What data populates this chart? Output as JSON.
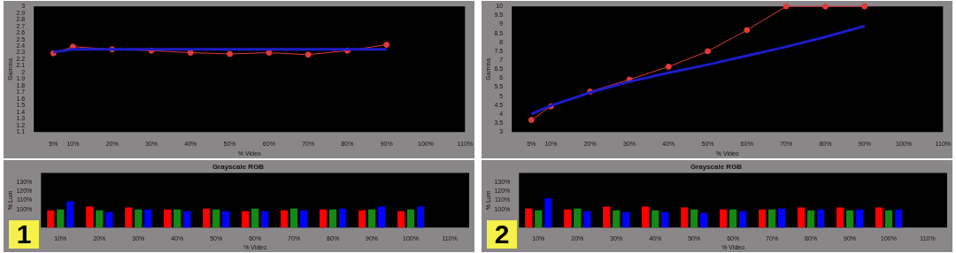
{
  "chart_data": [
    {
      "type": "line",
      "xlabel": "% Video",
      "ylabel": "Gamma",
      "marker": "circle",
      "xlim": [
        0,
        110
      ],
      "xticks": [
        {
          "value": 5,
          "label": "5%"
        },
        {
          "value": 10,
          "label": "10%"
        },
        {
          "value": 20,
          "label": "20%"
        },
        {
          "value": 30,
          "label": "30%"
        },
        {
          "value": 40,
          "label": "40%"
        },
        {
          "value": 50,
          "label": "50%"
        },
        {
          "value": 60,
          "label": "60%"
        },
        {
          "value": 70,
          "label": "70%"
        },
        {
          "value": 80,
          "label": "80%"
        },
        {
          "value": 90,
          "label": "90%"
        },
        {
          "value": 100,
          "label": "100%"
        },
        {
          "value": 110,
          "label": "110%"
        }
      ],
      "ylim": [
        1.1,
        3
      ],
      "yticks": [
        1.1,
        1.2,
        1.3,
        1.4,
        1.5,
        1.6,
        1.7,
        1.8,
        1.9,
        2,
        2.1,
        2.2,
        2.3,
        2.4,
        2.5,
        2.6,
        2.7,
        2.8,
        2.9,
        3
      ],
      "series": [
        {
          "color": "#1c1cc8",
          "marker": "none",
          "x": [
            5,
            10,
            20,
            30,
            40,
            50,
            60,
            70,
            80,
            90
          ],
          "values": [
            2.31,
            2.35,
            2.35,
            2.35,
            2.35,
            2.35,
            2.35,
            2.35,
            2.35,
            2.35
          ]
        },
        {
          "color": "#e03a3a",
          "x": [
            5,
            10,
            20,
            30,
            40,
            50,
            60,
            70,
            80,
            90
          ],
          "values": [
            2.29,
            2.39,
            2.35,
            2.33,
            2.3,
            2.28,
            2.3,
            2.27,
            2.33,
            2.42
          ]
        }
      ]
    },
    {
      "type": "line",
      "xlabel": "% Video",
      "ylabel": "Gamma",
      "marker": "circle",
      "xlim": [
        0,
        110
      ],
      "xticks": [
        {
          "value": 5,
          "label": "5%"
        },
        {
          "value": 10,
          "label": "10%"
        },
        {
          "value": 20,
          "label": "20%"
        },
        {
          "value": 30,
          "label": "30%"
        },
        {
          "value": 40,
          "label": "40%"
        },
        {
          "value": 50,
          "label": "50%"
        },
        {
          "value": 60,
          "label": "60%"
        },
        {
          "value": 70,
          "label": "70%"
        },
        {
          "value": 80,
          "label": "80%"
        },
        {
          "value": 90,
          "label": "90%"
        },
        {
          "value": 100,
          "label": "100%"
        },
        {
          "value": 110,
          "label": "110%"
        }
      ],
      "ylim": [
        3,
        10
      ],
      "yticks": [
        3,
        3.5,
        4,
        4.5,
        5,
        5.5,
        6,
        6.5,
        7,
        7.5,
        8,
        8.5,
        9,
        9.5,
        10
      ],
      "series": [
        {
          "color": "#1c1cc8",
          "marker": "none",
          "x": [
            5,
            10,
            20,
            30,
            40,
            50,
            60,
            70,
            80,
            90
          ],
          "values": [
            4.0,
            4.47,
            5.2,
            5.8,
            6.3,
            6.75,
            7.25,
            7.75,
            8.3,
            8.9
          ]
        },
        {
          "color": "#e03a3a",
          "x": [
            5,
            10,
            20,
            30,
            40,
            50,
            60,
            70,
            80,
            90
          ],
          "values": [
            3.67,
            4.43,
            5.25,
            5.92,
            6.64,
            7.5,
            8.68,
            10,
            10,
            10
          ]
        }
      ]
    },
    {
      "type": "bar",
      "title": "Grayscale RGB",
      "xlabel": "% Video",
      "ylabel": "% Lum",
      "annotations": [
        "1"
      ],
      "categories": [
        "10%",
        "20%",
        "30%",
        "40%",
        "50%",
        "60%",
        "70%",
        "80%",
        "90%",
        "100%",
        "110%"
      ],
      "ylim": [
        80,
        140
      ],
      "yticks": [
        {
          "value": 100,
          "label": "100%"
        },
        {
          "value": 110,
          "label": "110%"
        },
        {
          "value": 120,
          "label": "120%"
        },
        {
          "value": 130,
          "label": "130%"
        }
      ],
      "series": [
        {
          "color": "#ff0000",
          "values": [
            99,
            103,
            102,
            100,
            101,
            98,
            99,
            100,
            99,
            98,
            null
          ]
        },
        {
          "color": "#138a13",
          "values": [
            100,
            99,
            100,
            100,
            100,
            101,
            101,
            100,
            100,
            100,
            null
          ]
        },
        {
          "color": "#0000ff",
          "values": [
            109,
            97,
            100,
            98,
            98,
            98,
            99,
            101,
            103,
            103,
            null
          ]
        }
      ]
    },
    {
      "type": "bar",
      "title": "Grayscale RGB",
      "xlabel": "% Video",
      "ylabel": "% Lum",
      "annotations": [
        "2"
      ],
      "categories": [
        "10%",
        "20%",
        "30%",
        "40%",
        "50%",
        "60%",
        "70%",
        "80%",
        "90%",
        "100%",
        "110%"
      ],
      "ylim": [
        80,
        140
      ],
      "yticks": [
        {
          "value": 100,
          "label": "100%"
        },
        {
          "value": 110,
          "label": "110%"
        },
        {
          "value": 120,
          "label": "120%"
        },
        {
          "value": 130,
          "label": "130%"
        }
      ],
      "series": [
        {
          "color": "#ff0000",
          "values": [
            101,
            100,
            103,
            103,
            102,
            100,
            100,
            102,
            102,
            102,
            null
          ]
        },
        {
          "color": "#138a13",
          "values": [
            99,
            101,
            99,
            99,
            100,
            100,
            100,
            99,
            99,
            99,
            null
          ]
        },
        {
          "color": "#0000ff",
          "values": [
            112,
            98,
            97,
            97,
            96,
            98,
            101,
            100,
            100,
            100,
            null
          ]
        }
      ]
    }
  ]
}
